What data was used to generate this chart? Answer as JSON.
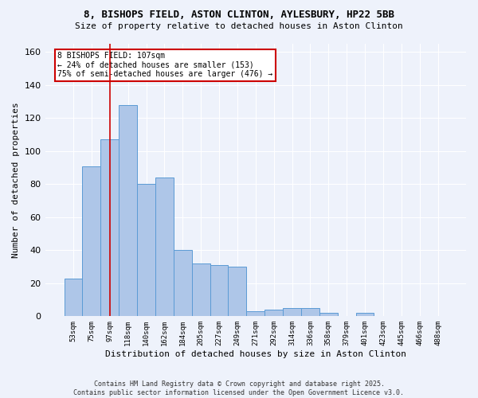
{
  "title1": "8, BISHOPS FIELD, ASTON CLINTON, AYLESBURY, HP22 5BB",
  "title2": "Size of property relative to detached houses in Aston Clinton",
  "xlabel": "Distribution of detached houses by size in Aston Clinton",
  "ylabel": "Number of detached properties",
  "categories": [
    "53sqm",
    "75sqm",
    "97sqm",
    "118sqm",
    "140sqm",
    "162sqm",
    "184sqm",
    "205sqm",
    "227sqm",
    "249sqm",
    "271sqm",
    "292sqm",
    "314sqm",
    "336sqm",
    "358sqm",
    "379sqm",
    "401sqm",
    "423sqm",
    "445sqm",
    "466sqm",
    "488sqm"
  ],
  "values": [
    23,
    91,
    107,
    128,
    80,
    84,
    40,
    32,
    31,
    30,
    3,
    4,
    5,
    5,
    2,
    0,
    2,
    0,
    0,
    0,
    0
  ],
  "bar_color": "#aec6e8",
  "bar_edge_color": "#5b9bd5",
  "background_color": "#eef2fb",
  "grid_color": "#ffffff",
  "vline_color": "#cc0000",
  "annotation_text": "8 BISHOPS FIELD: 107sqm\n← 24% of detached houses are smaller (153)\n75% of semi-detached houses are larger (476) →",
  "annotation_box_color": "white",
  "annotation_box_edge": "#cc0000",
  "ylim": [
    0,
    165
  ],
  "yticks": [
    0,
    20,
    40,
    60,
    80,
    100,
    120,
    140,
    160
  ],
  "footer1": "Contains HM Land Registry data © Crown copyright and database right 2025.",
  "footer2": "Contains public sector information licensed under the Open Government Licence v3.0."
}
